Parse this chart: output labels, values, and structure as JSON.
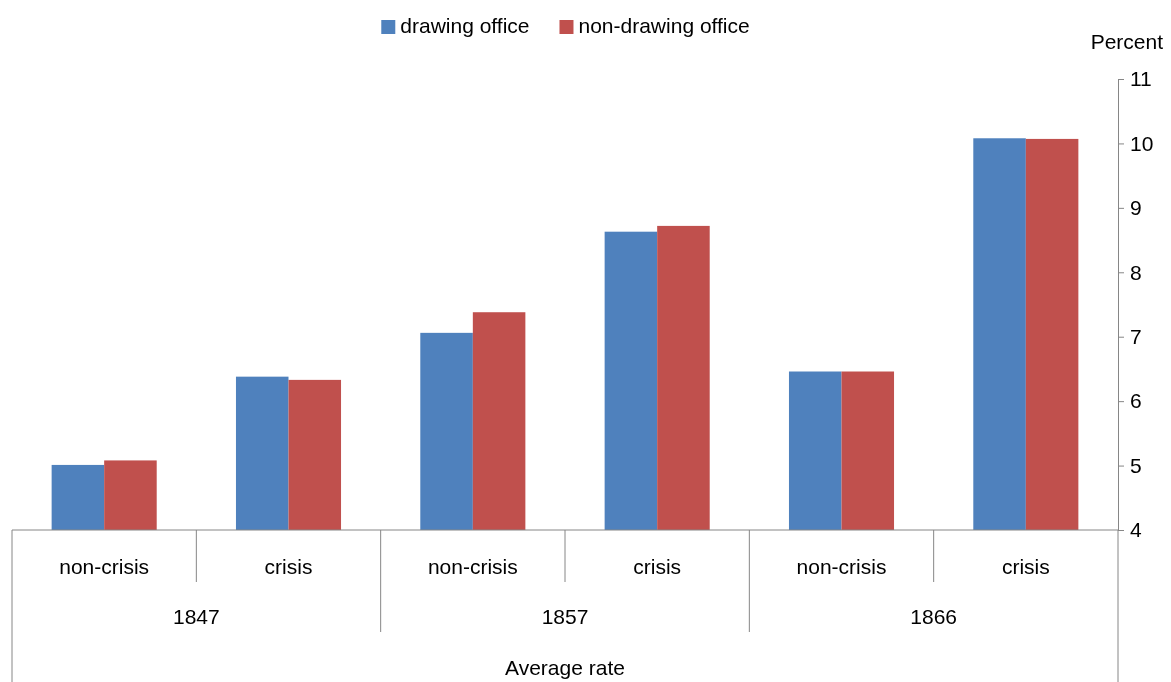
{
  "chart_data": {
    "type": "bar",
    "categories": [
      "non-crisis",
      "crisis",
      "non-crisis",
      "crisis",
      "non-crisis",
      "crisis"
    ],
    "series": [
      {
        "name": "drawing office",
        "color": "#4f81bd",
        "values": [
          5.01,
          6.38,
          7.06,
          8.63,
          6.46,
          10.08
        ]
      },
      {
        "name": "non-drawing office",
        "color": "#c0504d",
        "values": [
          5.08,
          6.33,
          7.38,
          8.72,
          6.46,
          10.07
        ]
      }
    ],
    "annotations": [
      "1847",
      "1857",
      "1866"
    ],
    "xlabel": "Average rate",
    "ylabel": "Percent",
    "ylim": [
      4,
      11
    ],
    "yticks": [
      4,
      5,
      6,
      7,
      8,
      9,
      10,
      11
    ],
    "legend": "top",
    "grid": false
  }
}
